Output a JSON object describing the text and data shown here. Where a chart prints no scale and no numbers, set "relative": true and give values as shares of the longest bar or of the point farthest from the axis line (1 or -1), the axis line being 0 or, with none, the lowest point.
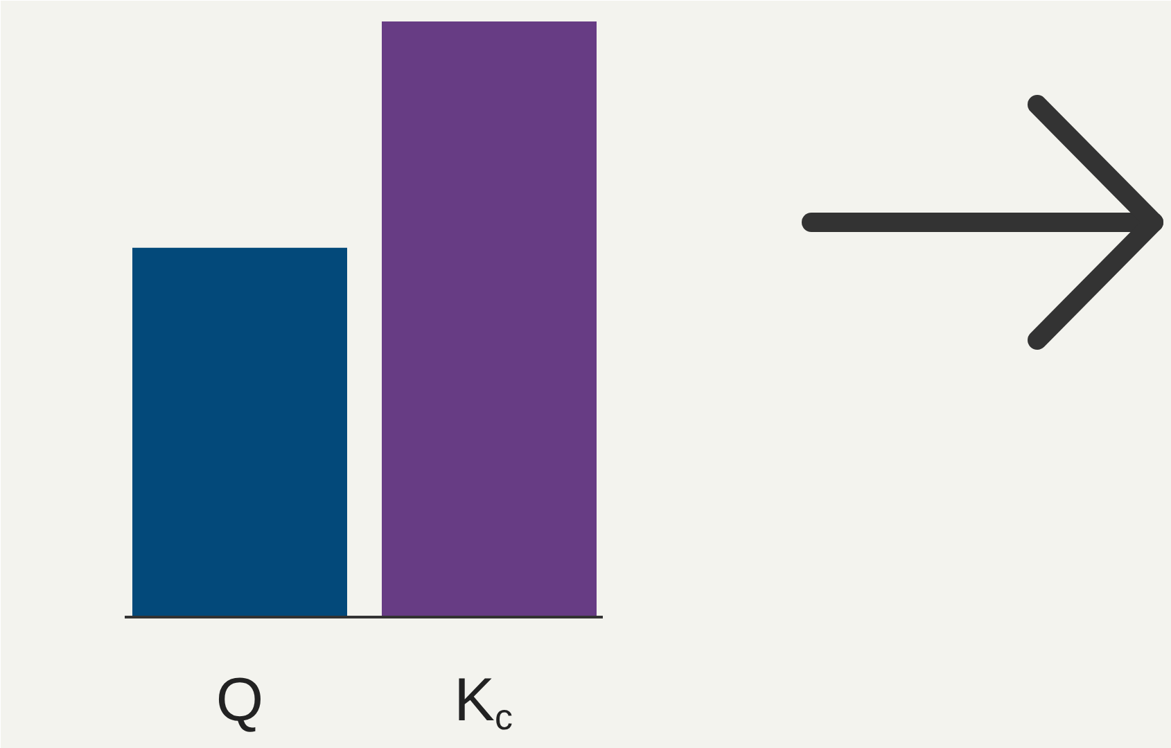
{
  "chart_data": {
    "type": "bar",
    "relative": true,
    "categories": [
      "Q",
      "K$_{c}$"
    ],
    "colors": [
      "#03497a",
      "#673c84"
    ],
    "values": [
      0.62,
      1
    ],
    "grid": false
  }
}
